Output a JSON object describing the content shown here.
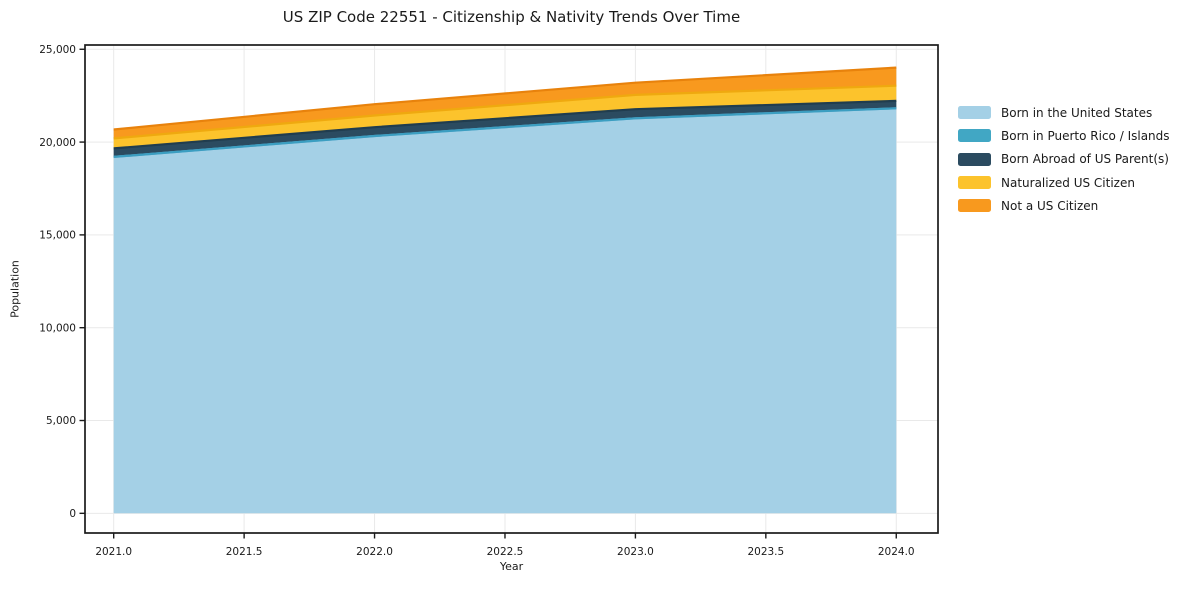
{
  "chart_data": {
    "type": "area",
    "stacked": true,
    "title": "US ZIP Code 22551 - Citizenship & Nativity Trends Over Time",
    "xlabel": "Year",
    "ylabel": "Population",
    "x": [
      2021,
      2022,
      2023,
      2024
    ],
    "series": [
      {
        "name": "Born in the United States",
        "values": [
          19200,
          20330,
          21280,
          21820
        ],
        "fill": "#a4d0e6",
        "edge": "#69acd1"
      },
      {
        "name": "Born in Puerto Rico / Islands",
        "values": [
          0,
          0,
          0,
          0
        ],
        "fill": "#41a7c4",
        "edge": "#3b9ec1"
      },
      {
        "name": "Born Abroad of US Parent(s)",
        "values": [
          460,
          470,
          490,
          400
        ],
        "fill": "#2b4b60",
        "edge": "#203d4f"
      },
      {
        "name": "Naturalized US Citizen",
        "values": [
          540,
          630,
          770,
          820
        ],
        "fill": "#fcc32c",
        "edge": "#efa90f"
      },
      {
        "name": "Not a US Citizen",
        "values": [
          480,
          610,
          660,
          970
        ],
        "fill": "#f8991e",
        "edge": "#e8820c"
      }
    ],
    "x_ticks": {
      "values": [
        2021.0,
        2021.5,
        2022.0,
        2022.5,
        2023.0,
        2023.5,
        2024.0
      ],
      "labels": [
        "2021.0",
        "2021.5",
        "2022.0",
        "2022.5",
        "2023.0",
        "2023.5",
        "2024.0"
      ]
    },
    "y_ticks": {
      "values": [
        0,
        5000,
        10000,
        15000,
        20000,
        25000
      ],
      "labels": [
        "0",
        "5,000",
        "10,000",
        "15,000",
        "20,000",
        "25,000"
      ]
    },
    "xlim": [
      2020.89,
      2024.16
    ],
    "ylim": [
      -1060,
      25230
    ],
    "grid": true,
    "legend_position": "right"
  },
  "colors": {
    "grid": "#e9e9e9",
    "spine": "#1a1a1a",
    "text": "#1a1a1a",
    "background": "#ffffff"
  }
}
